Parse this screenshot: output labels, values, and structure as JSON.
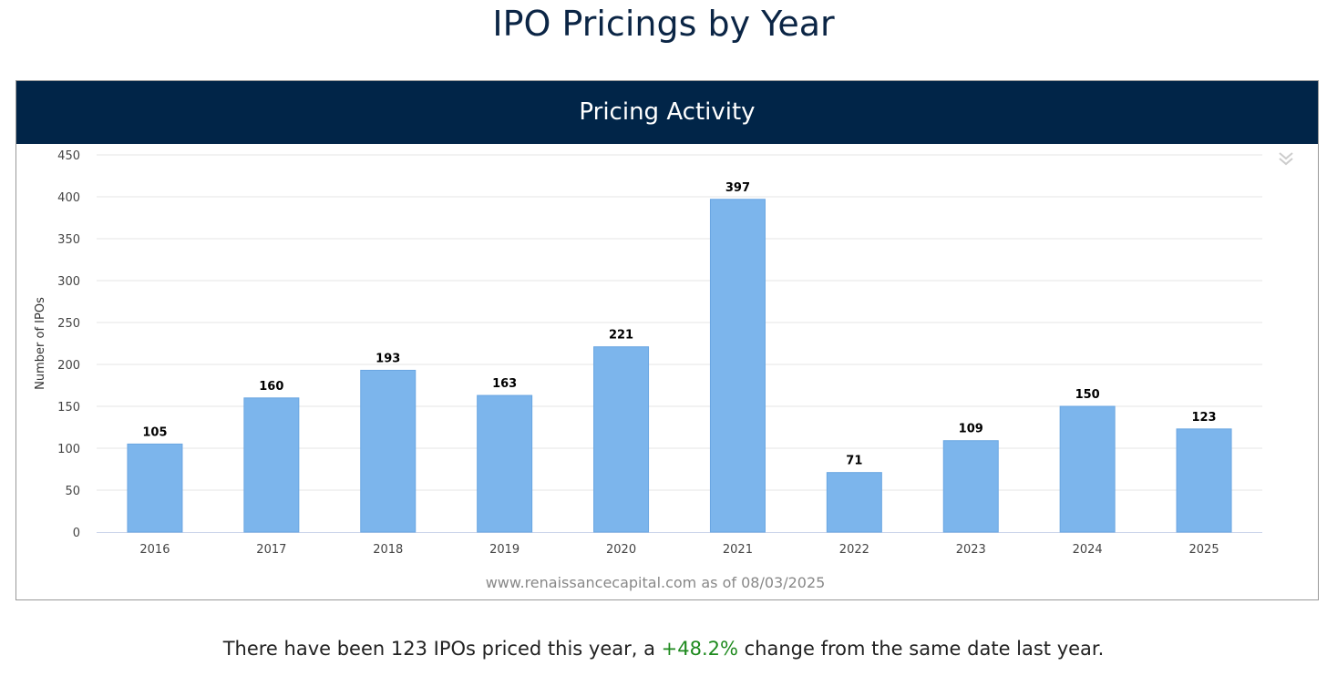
{
  "page_title": "IPO Pricings by Year",
  "chart_header": "Pricing Activity",
  "source_note": "www.renaissancecapital.com as of 08/03/2025",
  "summary": {
    "prefix": "There have been 123 IPOs priced this year, a ",
    "change": "+48.2%",
    "suffix": " change from the same date last year."
  },
  "menu_icon": "double-chevron-down-icon",
  "colors": {
    "bar": "#7cb5ec",
    "header": "#012548",
    "positive": "#1e8a1e"
  },
  "chart_data": {
    "type": "bar",
    "title": "Pricing Activity",
    "xlabel": "",
    "ylabel": "Number of IPOs",
    "categories": [
      "2016",
      "2017",
      "2018",
      "2019",
      "2020",
      "2021",
      "2022",
      "2023",
      "2024",
      "2025"
    ],
    "values": [
      105,
      160,
      193,
      163,
      221,
      397,
      71,
      109,
      150,
      123
    ],
    "ylim": [
      0,
      450
    ],
    "yticks": [
      0,
      50,
      100,
      150,
      200,
      250,
      300,
      350,
      400,
      450
    ],
    "grid": true,
    "legend": "none"
  }
}
